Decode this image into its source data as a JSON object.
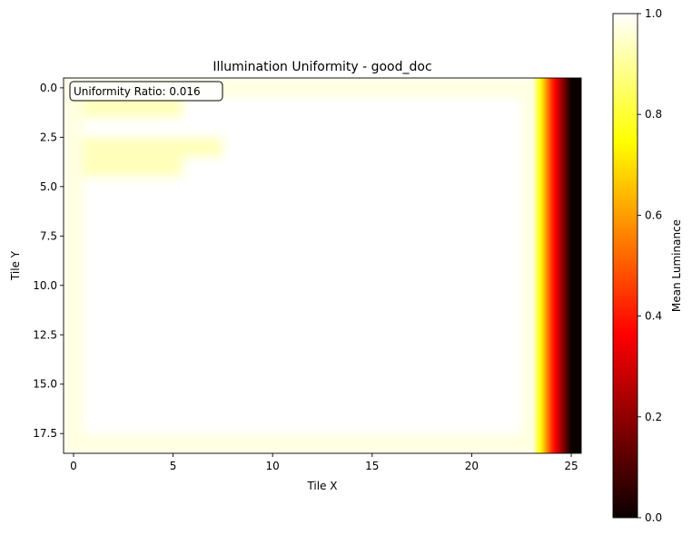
{
  "chart_data": {
    "type": "heatmap",
    "title": "Illumination Uniformity - good_doc",
    "xlabel": "Tile X",
    "ylabel": "Tile Y",
    "xlim": [
      -0.5,
      25.5
    ],
    "ylim": [
      18.5,
      -0.5
    ],
    "x_ticks": [
      0,
      5,
      10,
      15,
      20,
      25
    ],
    "x_tick_labels": [
      "0",
      "5",
      "10",
      "15",
      "20",
      "25"
    ],
    "y_ticks": [
      0.0,
      2.5,
      5.0,
      7.5,
      10.0,
      12.5,
      15.0,
      17.5
    ],
    "y_tick_labels": [
      "0.0",
      "2.5",
      "5.0",
      "7.5",
      "10.0",
      "12.5",
      "15.0",
      "17.5"
    ],
    "grid_cols": 26,
    "grid_rows": 19,
    "interior_value": 1.0,
    "border_value": 0.97,
    "patch_value": 0.93,
    "patches": [
      {
        "rows": [
          1,
          1
        ],
        "cols": [
          1,
          5
        ]
      },
      {
        "rows": [
          3,
          3
        ],
        "cols": [
          1,
          7
        ]
      },
      {
        "rows": [
          4,
          4
        ],
        "cols": [
          1,
          5
        ]
      }
    ],
    "right_edge_columns": [
      {
        "x": 24,
        "value": 0.45
      },
      {
        "x": 25,
        "value": 0.0
      }
    ],
    "annotation": "Uniformity Ratio: 0.016",
    "interpolation": "bilinear",
    "colormap": "hot",
    "colorbar": {
      "label": "Mean Luminance",
      "vmin": 0.0,
      "vmax": 1.0,
      "ticks": [
        0.0,
        0.2,
        0.4,
        0.6,
        0.8,
        1.0
      ],
      "tick_labels": [
        "0.0",
        "0.2",
        "0.4",
        "0.6",
        "0.8",
        "1.0"
      ]
    }
  }
}
